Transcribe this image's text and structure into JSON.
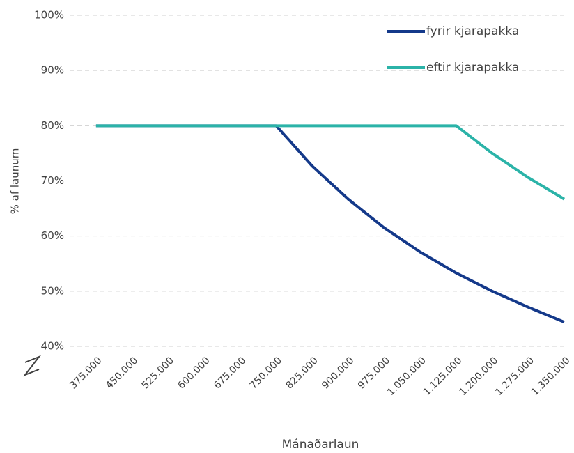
{
  "chart_data": {
    "type": "line",
    "x": [
      375000,
      450000,
      525000,
      600000,
      675000,
      750000,
      825000,
      900000,
      975000,
      1050000,
      1125000,
      1200000,
      1275000,
      1350000
    ],
    "series": [
      {
        "name": "fyrir kjarapakka",
        "color": "#14398a",
        "values": [
          80,
          80,
          80,
          80,
          80,
          80,
          72.7,
          66.7,
          61.5,
          57.1,
          53.3,
          50,
          47.1,
          44.4
        ]
      },
      {
        "name": "eftir kjarapakka",
        "color": "#2bb3a8",
        "values": [
          80,
          80,
          80,
          80,
          80,
          80,
          80,
          80,
          80,
          80,
          80,
          75,
          70.6,
          66.7
        ]
      }
    ],
    "xlabel": "Mánaðarlaun",
    "ylabel": "% af launum",
    "xlim": [
      320000,
      1350000
    ],
    "xticks": [
      {
        "value": 375000,
        "label": "375.000"
      },
      {
        "value": 450000,
        "label": "450.000"
      },
      {
        "value": 525000,
        "label": "525.000"
      },
      {
        "value": 600000,
        "label": "600.000"
      },
      {
        "value": 675000,
        "label": "675.000"
      },
      {
        "value": 750000,
        "label": "750.000"
      },
      {
        "value": 825000,
        "label": "825.000"
      },
      {
        "value": 900000,
        "label": "900.000"
      },
      {
        "value": 975000,
        "label": "975.000"
      },
      {
        "value": 1050000,
        "label": "1.050.000"
      },
      {
        "value": 1125000,
        "label": "1.125.000"
      },
      {
        "value": 1200000,
        "label": "1.200.000"
      },
      {
        "value": 1275000,
        "label": "1.275.000"
      },
      {
        "value": 1350000,
        "label": "1.350.000"
      }
    ],
    "ylim": [
      40,
      100
    ],
    "yticks": [
      {
        "value": 40,
        "label": "40%"
      },
      {
        "value": 50,
        "label": "50%"
      },
      {
        "value": 60,
        "label": "60%"
      },
      {
        "value": 70,
        "label": "70%"
      },
      {
        "value": 80,
        "label": "80%"
      },
      {
        "value": 90,
        "label": "90%"
      },
      {
        "value": 100,
        "label": "100%"
      }
    ],
    "grid": true,
    "legend": "upper right"
  }
}
